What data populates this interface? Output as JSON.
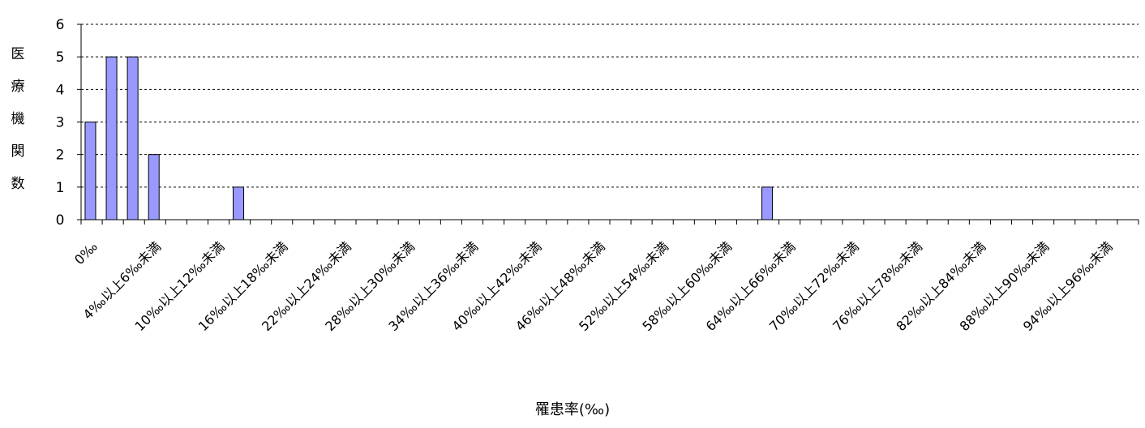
{
  "chart_data": {
    "type": "bar",
    "xlabel": "罹患率(‰)",
    "ylabel": "医療機関数",
    "ylim": [
      0,
      6
    ],
    "yticks": [
      0,
      1,
      2,
      3,
      4,
      5,
      6
    ],
    "grid": true,
    "legend": "none",
    "colors": {
      "bar_fill": "#9999ff",
      "bar_stroke": "#000000",
      "grid": "#000000"
    },
    "tick_labels": [
      "0‰",
      "4‰以上6‰未満",
      "10‰以上12‰未満",
      "16‰以上18‰未満",
      "22‰以上24‰未満",
      "28‰以上30‰未満",
      "34‰以上36‰未満",
      "40‰以上42‰未満",
      "46‰以上48‰未満",
      "52‰以上54‰未満",
      "58‰以上60‰未満",
      "64‰以上66‰未満",
      "70‰以上72‰未満",
      "76‰以上78‰未満",
      "82‰以上84‰未満",
      "88‰以上90‰未満",
      "94‰以上96‰未満"
    ],
    "values": [
      3,
      5,
      5,
      2,
      0,
      0,
      0,
      1,
      0,
      0,
      0,
      0,
      0,
      0,
      0,
      0,
      0,
      0,
      0,
      0,
      0,
      0,
      0,
      0,
      0,
      0,
      0,
      0,
      0,
      0,
      0,
      0,
      1,
      0,
      0,
      0,
      0,
      0,
      0,
      0,
      0,
      0,
      0,
      0,
      0,
      0,
      0,
      0,
      0,
      0
    ]
  }
}
